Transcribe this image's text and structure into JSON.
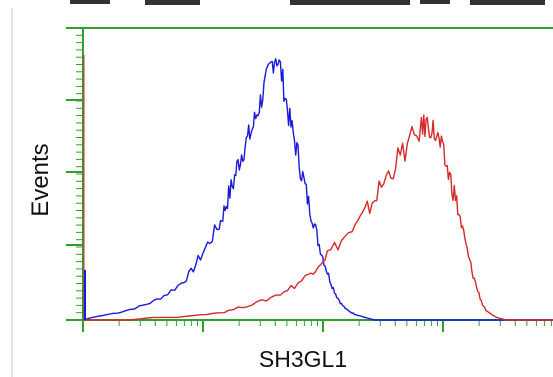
{
  "chart_data": {
    "type": "line",
    "title": "",
    "xlabel": "SH3GL1",
    "ylabel": "Events",
    "xscale": "log",
    "xlim": [
      0,
      100
    ],
    "ylim": [
      0,
      100
    ],
    "grid": false,
    "legend": "none",
    "series": [
      {
        "color": "#1a1adb",
        "x": [
          0,
          2,
          5,
          8,
          12,
          15,
          18,
          21,
          23,
          25,
          27,
          29,
          30,
          31,
          32,
          33,
          34,
          35,
          36,
          37,
          38,
          39,
          40,
          41,
          42,
          43,
          44,
          45,
          46,
          47,
          48,
          49,
          50,
          51,
          52,
          53,
          54,
          55,
          56,
          57,
          58,
          60,
          62,
          65,
          68,
          72,
          78,
          84,
          90,
          100
        ],
        "values": [
          0,
          1,
          2,
          3,
          5,
          7,
          10,
          14,
          18,
          24,
          30,
          36,
          41,
          47,
          52,
          59,
          64,
          68,
          72,
          78,
          84,
          90,
          96,
          100,
          95,
          85,
          75,
          68,
          60,
          52,
          44,
          38,
          30,
          24,
          18,
          13,
          9,
          6,
          4,
          3,
          2,
          1,
          0,
          0,
          0,
          0,
          0,
          0,
          0,
          0
        ]
      },
      {
        "color": "#d42a2a",
        "x": [
          0,
          5,
          10,
          15,
          20,
          25,
          30,
          34,
          38,
          42,
          45,
          48,
          50,
          52,
          55,
          58,
          60,
          62,
          64,
          66,
          68,
          70,
          72,
          73,
          74,
          75,
          76,
          77,
          78,
          79,
          80,
          81,
          82,
          83,
          84,
          85,
          86,
          88,
          90,
          92,
          95,
          100
        ],
        "values": [
          0,
          0,
          0,
          1,
          1,
          2,
          3,
          5,
          7,
          10,
          13,
          17,
          21,
          25,
          30,
          35,
          40,
          46,
          52,
          58,
          63,
          68,
          72,
          74,
          73,
          70,
          66,
          60,
          54,
          48,
          40,
          32,
          24,
          17,
          11,
          6,
          3,
          1,
          0,
          0,
          0,
          0
        ]
      }
    ]
  }
}
